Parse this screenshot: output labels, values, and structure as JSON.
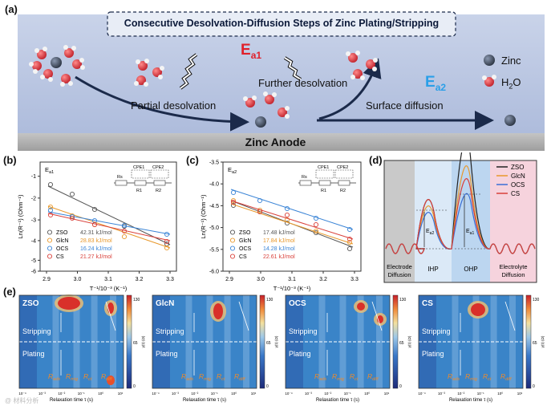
{
  "panel_a": {
    "label": "(a)",
    "title": "Consecutive Desolvation-Diffusion Steps of Zinc Plating/Stripping",
    "ea1": "E",
    "ea1_sub": "a1",
    "ea2": "E",
    "ea2_sub": "a2",
    "partial": "Partial desolvation",
    "further": "Further desolvation",
    "surface": "Surface diffusion",
    "anode": "Zinc Anode",
    "legend_zinc": "Zinc",
    "legend_h2o": "H",
    "legend_h2o_sub": "2",
    "legend_h2o_end": "O"
  },
  "panel_b": {
    "label": "(b)",
    "tag": "E",
    "tag_sub": "a1",
    "ylabel": "Ln(R⁻¹) (Ohm⁻¹)",
    "xlabel": "T⁻¹/10⁻³ (K⁻¹)",
    "xticks": [
      "2.9",
      "3.0",
      "3.1",
      "3.2",
      "3.3"
    ],
    "yticks": [
      "-1",
      "-2",
      "-3",
      "-4",
      "-5",
      "-6"
    ],
    "circuit": {
      "rs": "Rs",
      "cpe1": "CPE1",
      "cpe2": "CPE2",
      "r1": "R1",
      "r2": "R2"
    },
    "legend": [
      {
        "name": "ZSO",
        "val": "42.31 kJ/mol",
        "color": "#555555"
      },
      {
        "name": "GlcN",
        "val": "28.83 kJ/mol",
        "color": "#e8982b"
      },
      {
        "name": "OCS",
        "val": "16.24 kJ/mol",
        "color": "#3a84d6"
      },
      {
        "name": "CS",
        "val": "21.27 kJ/mol",
        "color": "#d9403a"
      }
    ]
  },
  "panel_c": {
    "label": "(c)",
    "tag": "E",
    "tag_sub": "a2",
    "ylabel": "Ln(R⁻¹) (Ohm⁻¹)",
    "xlabel": "T⁻¹/10⁻³ (K⁻¹)",
    "xticks": [
      "2.9",
      "3.0",
      "3.1",
      "3.2",
      "3.3"
    ],
    "yticks": [
      "-3.5",
      "-4.0",
      "-4.5",
      "-5.0",
      "-5.5",
      "-6.0"
    ],
    "circuit": {
      "rs": "Rs",
      "cpe1": "CPE1",
      "cpe2": "CPE2",
      "r1": "R1",
      "r2": "R2"
    },
    "legend": [
      {
        "name": "ZSO",
        "val": "17.48 kJ/mol",
        "color": "#555555"
      },
      {
        "name": "GlcN",
        "val": "17.84 kJ/mol",
        "color": "#e8982b"
      },
      {
        "name": "OCS",
        "val": "14.28 kJ/mol",
        "color": "#3a84d6"
      },
      {
        "name": "CS",
        "val": "22.61 kJ/mol",
        "color": "#d9403a"
      }
    ]
  },
  "panel_d": {
    "label": "(d)",
    "ea2": "E",
    "ea2_sub": "a2",
    "ea1": "E",
    "ea1_sub": "a1",
    "regions": [
      "Electrode Diffusion",
      "IHP",
      "OHP",
      "Electrolyte Diffusion"
    ],
    "legend": [
      {
        "name": "ZSO",
        "color": "#222222"
      },
      {
        "name": "GlcN",
        "color": "#e8982b"
      },
      {
        "name": "OCS",
        "color": "#3a6fd6"
      },
      {
        "name": "CS",
        "color": "#d9403a"
      }
    ]
  },
  "panel_e": {
    "label": "(e)",
    "xlabel": "Relaxation time τ (s)",
    "cbar_label": "γ(τ) (Ω)",
    "cbar_ticks": [
      "130",
      "65",
      "0"
    ],
    "stripping": "Stripping",
    "plating": "Plating",
    "peaks": [
      "R",
      "R",
      "R",
      "R"
    ],
    "peak_subs": [
      "ads",
      "mig",
      "ct",
      "diff"
    ],
    "xticks": [
      "10⁻⁴",
      "10⁻³",
      "10⁻²",
      "10⁻¹",
      "10⁰",
      "10¹"
    ],
    "maps": [
      {
        "name": "ZSO"
      },
      {
        "name": "GlcN"
      },
      {
        "name": "OCS"
      },
      {
        "name": "CS"
      }
    ]
  },
  "watermark": "@ 材料分析"
}
